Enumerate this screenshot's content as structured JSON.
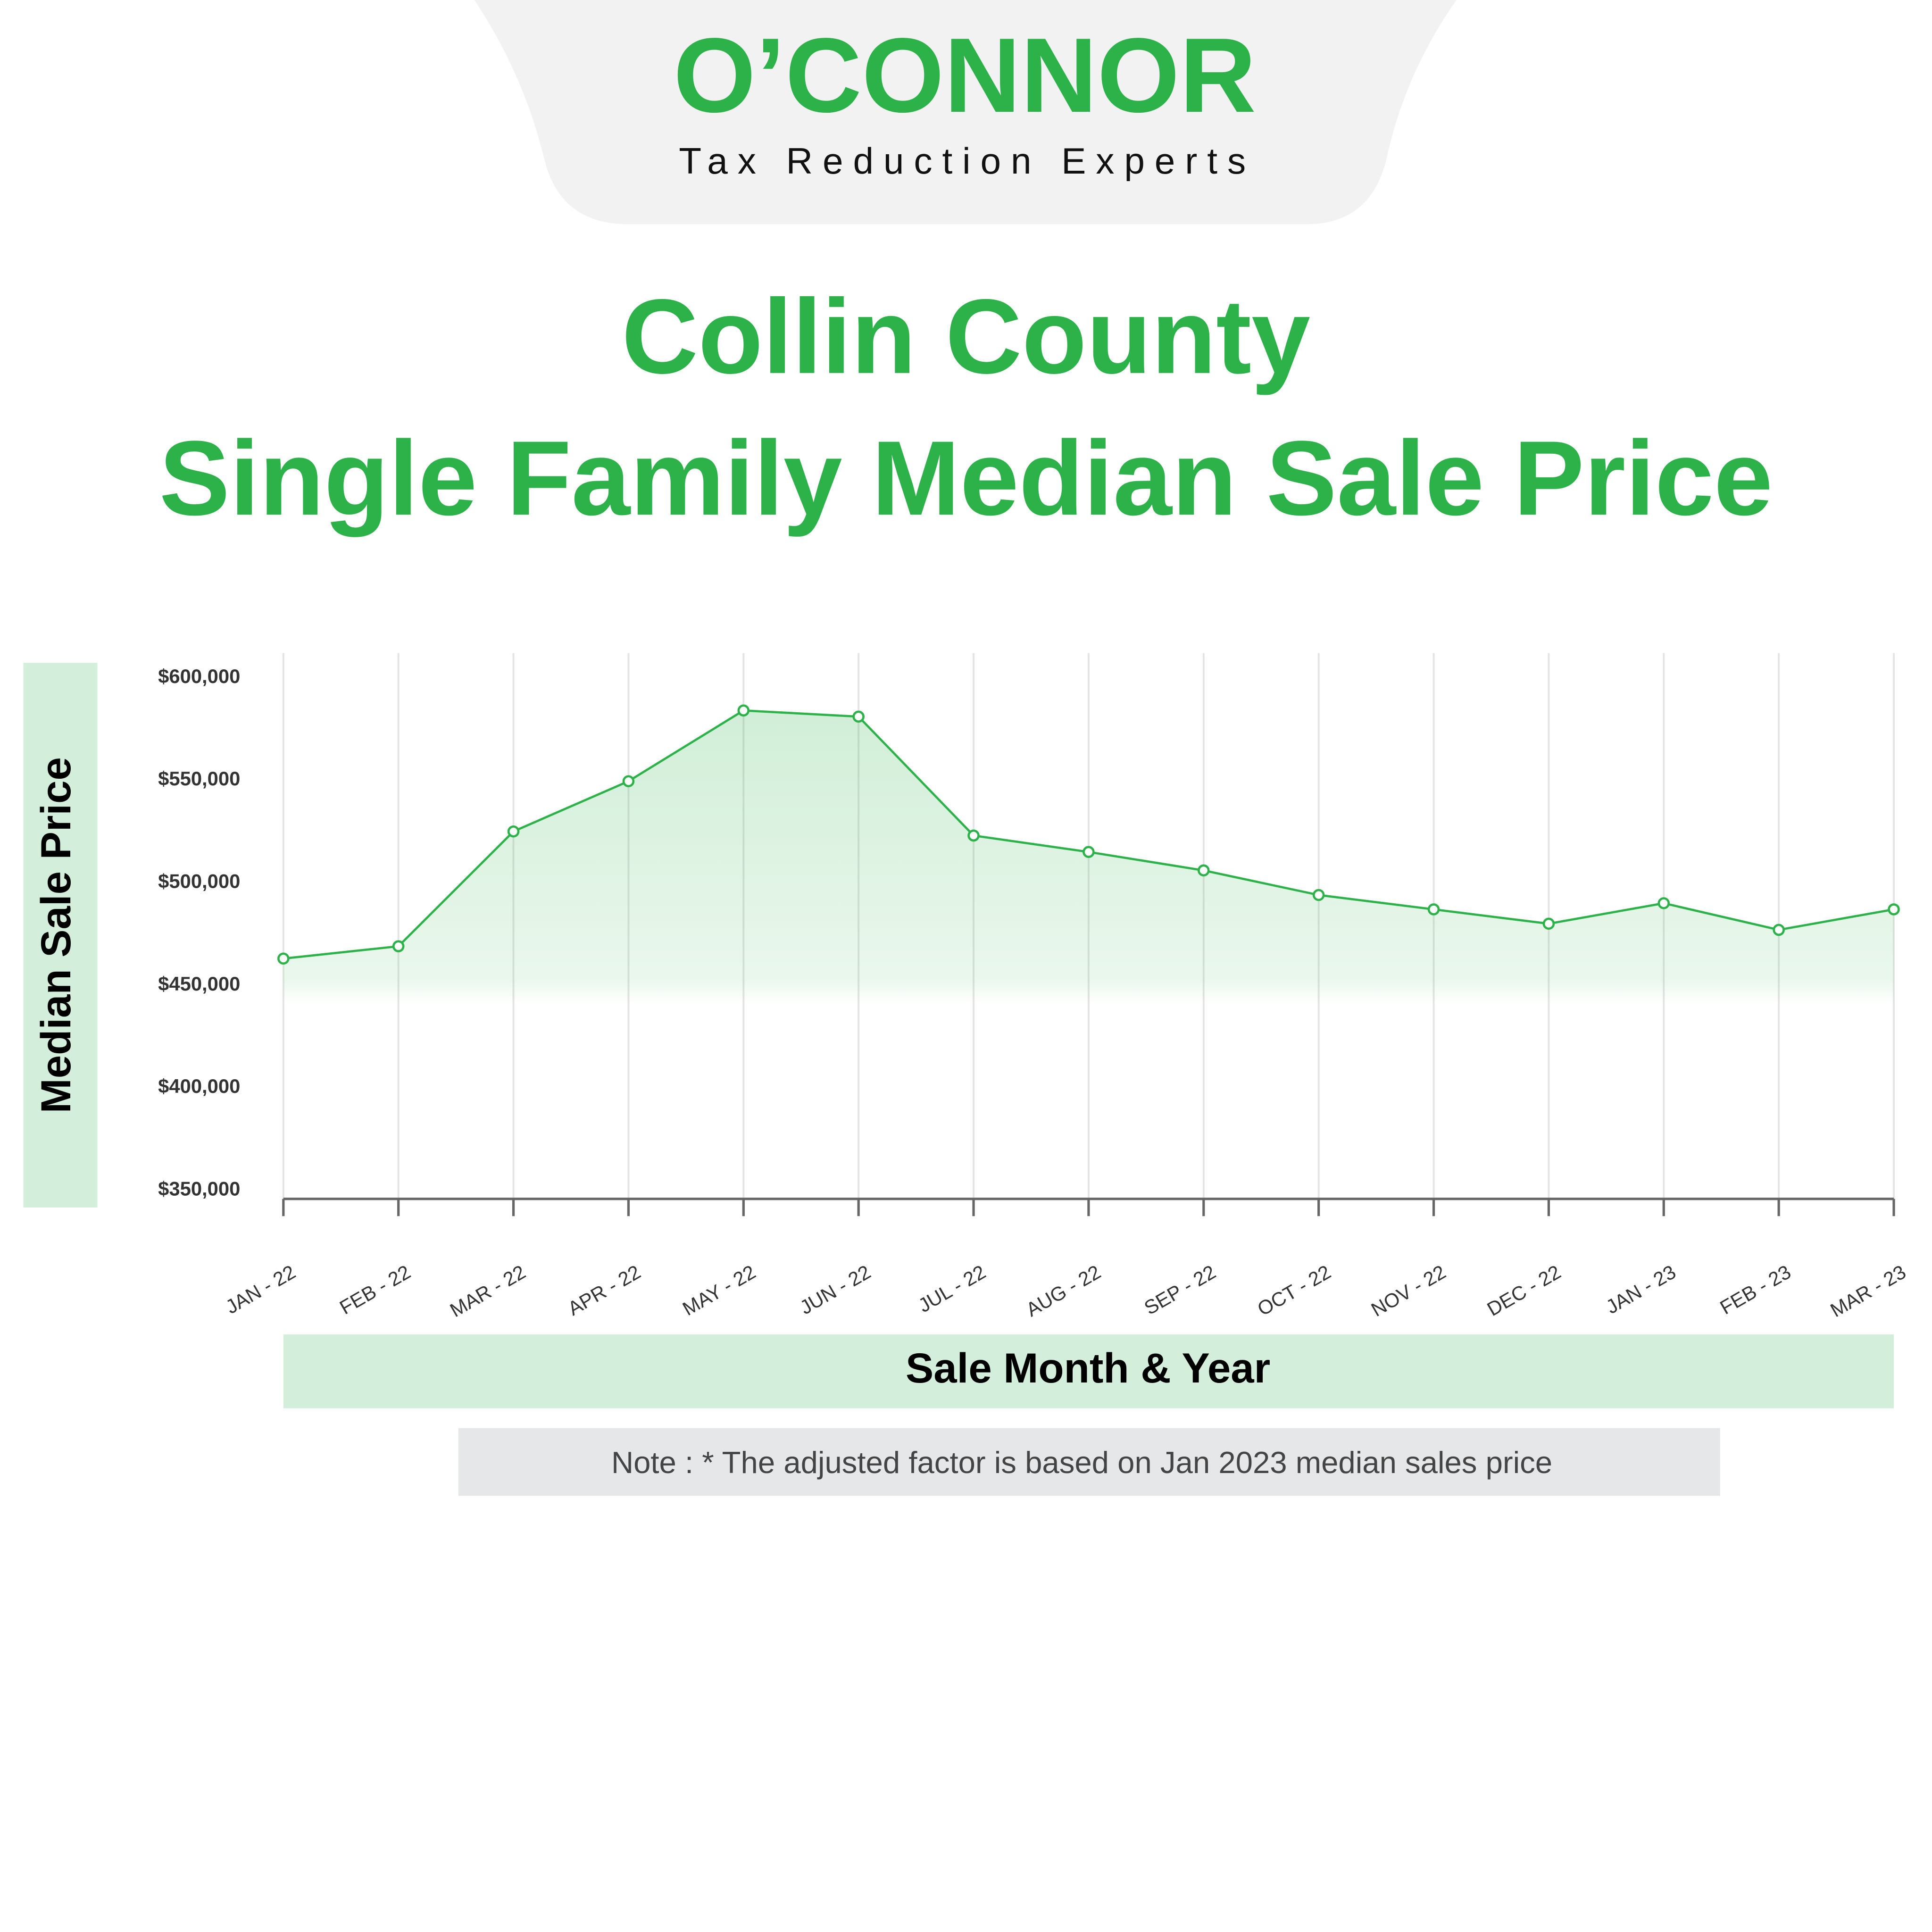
{
  "header": {
    "logo": "O’CONNOR",
    "tagline": "Tax Reduction Experts"
  },
  "chart_data": {
    "type": "line",
    "title": "Collin County",
    "subtitle": "Single Family Median Sale Price",
    "y_label": "Median Sale Price",
    "x_label": "Sale Month & Year",
    "note": "Note : * The adjusted factor is based on Jan 2023 median sales price",
    "categories": [
      "JAN - 22",
      "FEB - 22",
      "MAR - 22",
      "APR - 22",
      "MAY - 22",
      "JUN - 22",
      "JUL - 22",
      "AUG - 22",
      "SEP - 22",
      "OCT - 22",
      "NOV - 22",
      "DEC - 22",
      "JAN - 23",
      "FEB - 23",
      "MAR - 23"
    ],
    "values": [
      463000,
      469000,
      525000,
      549500,
      584000,
      581000,
      523000,
      515000,
      506000,
      494000,
      487000,
      480000,
      490000,
      477000,
      487000
    ],
    "color": "#2db24a",
    "ylim": [
      350000,
      600000
    ],
    "yticks": [
      {
        "value": 350000,
        "label": "$350,000"
      },
      {
        "value": 400000,
        "label": "$400,000"
      },
      {
        "value": 450000,
        "label": "$450,000"
      },
      {
        "value": 500000,
        "label": "$500,000"
      },
      {
        "value": 550000,
        "label": "$550,000"
      },
      {
        "value": 600000,
        "label": "$600,000"
      }
    ]
  }
}
